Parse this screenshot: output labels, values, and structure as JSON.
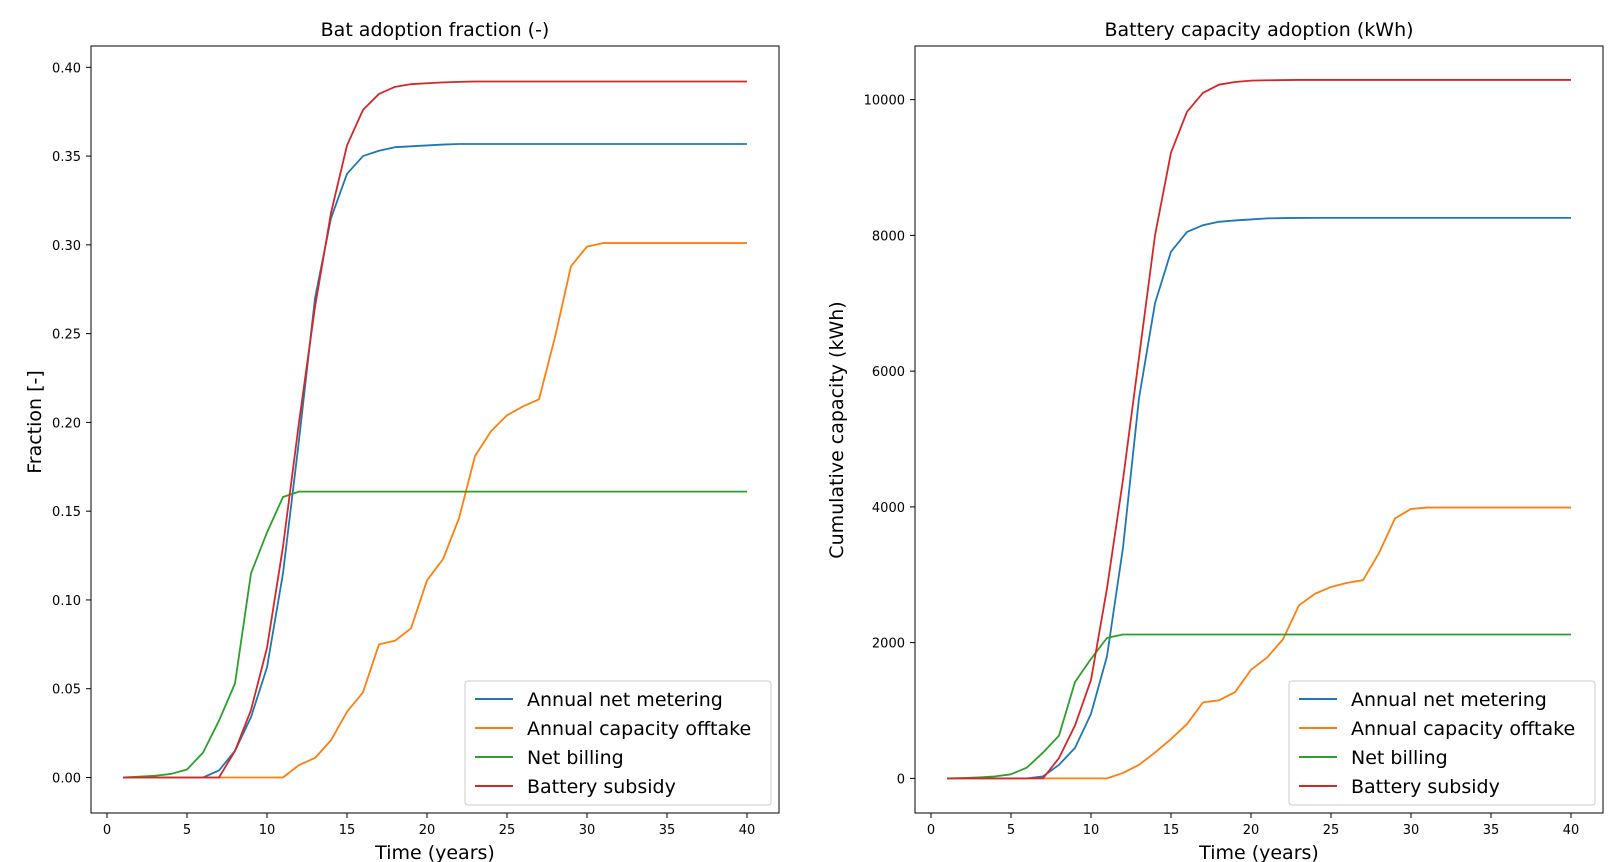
{
  "chart_data": [
    {
      "type": "line",
      "title": "Bat adoption fraction (-)",
      "xlabel": "Time (years)",
      "ylabel": "Fraction [-]",
      "xlim": [
        -1,
        42
      ],
      "ylim": [
        -0.02,
        0.412
      ],
      "xticks": [
        0,
        5,
        10,
        15,
        20,
        25,
        30,
        35,
        40
      ],
      "yticks": [
        0.0,
        0.05,
        0.1,
        0.15,
        0.2,
        0.25,
        0.3,
        0.35,
        0.4
      ],
      "ytick_labels": [
        "0.00",
        "0.05",
        "0.10",
        "0.15",
        "0.20",
        "0.25",
        "0.30",
        "0.35",
        "0.40"
      ],
      "grid": false,
      "legend_position": "lower-right",
      "x": [
        1,
        2,
        3,
        4,
        5,
        6,
        7,
        8,
        9,
        10,
        11,
        12,
        13,
        14,
        15,
        16,
        17,
        18,
        19,
        20,
        21,
        22,
        23,
        24,
        25,
        26,
        27,
        28,
        29,
        30,
        31,
        32,
        33,
        34,
        35,
        36,
        37,
        38,
        39,
        40
      ],
      "series": [
        {
          "name": "Annual net metering",
          "color": "#1f77b4",
          "values": [
            0,
            0,
            0,
            0,
            0,
            0,
            0.004,
            0.015,
            0.034,
            0.062,
            0.115,
            0.19,
            0.27,
            0.315,
            0.34,
            0.35,
            0.353,
            0.355,
            0.3555,
            0.356,
            0.3565,
            0.3568,
            0.3568,
            0.3568,
            0.3568,
            0.3568,
            0.3568,
            0.3568,
            0.3568,
            0.3568,
            0.3568,
            0.3568,
            0.3568,
            0.3568,
            0.3568,
            0.3568,
            0.3568,
            0.3568,
            0.3568,
            0.3568
          ]
        },
        {
          "name": "Annual capacity offtake",
          "color": "#ff7f0e",
          "values": [
            0,
            0,
            0,
            0,
            0,
            0,
            0,
            0,
            0,
            0,
            0,
            0.007,
            0.011,
            0.021,
            0.037,
            0.048,
            0.075,
            0.077,
            0.084,
            0.111,
            0.123,
            0.146,
            0.181,
            0.195,
            0.204,
            0.209,
            0.213,
            0.248,
            0.288,
            0.299,
            0.301,
            0.301,
            0.301,
            0.301,
            0.301,
            0.301,
            0.301,
            0.301,
            0.301,
            0.301
          ]
        },
        {
          "name": "Net billing",
          "color": "#2ca02c",
          "values": [
            0,
            0.0005,
            0.001,
            0.002,
            0.0045,
            0.014,
            0.032,
            0.053,
            0.115,
            0.138,
            0.158,
            0.161,
            0.161,
            0.161,
            0.161,
            0.161,
            0.161,
            0.161,
            0.161,
            0.161,
            0.161,
            0.161,
            0.161,
            0.161,
            0.161,
            0.161,
            0.161,
            0.161,
            0.161,
            0.161,
            0.161,
            0.161,
            0.161,
            0.161,
            0.161,
            0.161,
            0.161,
            0.161,
            0.161,
            0.161
          ]
        },
        {
          "name": "Battery subsidy",
          "color": "#d62728",
          "values": [
            0,
            0,
            0,
            0,
            0,
            0,
            0,
            0.015,
            0.038,
            0.073,
            0.13,
            0.2,
            0.265,
            0.318,
            0.356,
            0.376,
            0.385,
            0.389,
            0.3905,
            0.391,
            0.3915,
            0.3918,
            0.392,
            0.392,
            0.392,
            0.392,
            0.392,
            0.392,
            0.392,
            0.392,
            0.392,
            0.392,
            0.392,
            0.392,
            0.392,
            0.392,
            0.392,
            0.392,
            0.392,
            0.392
          ]
        }
      ]
    },
    {
      "type": "line",
      "title": "Battery capacity adoption (kWh)",
      "xlabel": "Time (years)",
      "ylabel": "Cumulative capacity (kWh)",
      "xlim": [
        -1,
        42
      ],
      "ylim": [
        -510,
        10790
      ],
      "xticks": [
        0,
        5,
        10,
        15,
        20,
        25,
        30,
        35,
        40
      ],
      "yticks": [
        0,
        2000,
        4000,
        6000,
        8000,
        10000
      ],
      "ytick_labels": [
        "0",
        "2000",
        "4000",
        "6000",
        "8000",
        "10000"
      ],
      "grid": false,
      "legend_position": "lower-right",
      "x": [
        1,
        2,
        3,
        4,
        5,
        6,
        7,
        8,
        9,
        10,
        11,
        12,
        13,
        14,
        15,
        16,
        17,
        18,
        19,
        20,
        21,
        22,
        23,
        24,
        25,
        26,
        27,
        28,
        29,
        30,
        31,
        32,
        33,
        34,
        35,
        36,
        37,
        38,
        39,
        40
      ],
      "series": [
        {
          "name": "Annual net metering",
          "color": "#1f77b4",
          "values": [
            0,
            0,
            0,
            0,
            0,
            0,
            30,
            200,
            450,
            950,
            1800,
            3400,
            5600,
            7000,
            7760,
            8050,
            8150,
            8200,
            8220,
            8235,
            8250,
            8255,
            8257,
            8258,
            8258,
            8258,
            8258,
            8258,
            8258,
            8258,
            8258,
            8258,
            8258,
            8258,
            8258,
            8258,
            8258,
            8258,
            8258,
            8258
          ]
        },
        {
          "name": "Annual capacity offtake",
          "color": "#ff7f0e",
          "values": [
            0,
            0,
            0,
            0,
            0,
            0,
            0,
            0,
            0,
            0,
            0,
            80,
            200,
            380,
            580,
            800,
            1120,
            1150,
            1270,
            1600,
            1780,
            2050,
            2550,
            2720,
            2820,
            2880,
            2920,
            3320,
            3830,
            3970,
            3990,
            3990,
            3990,
            3990,
            3990,
            3990,
            3990,
            3990,
            3990,
            3990
          ]
        },
        {
          "name": "Net billing",
          "color": "#2ca02c",
          "values": [
            0,
            5,
            15,
            30,
            60,
            160,
            380,
            630,
            1420,
            1760,
            2070,
            2120,
            2120,
            2120,
            2120,
            2120,
            2120,
            2120,
            2120,
            2120,
            2120,
            2120,
            2120,
            2120,
            2120,
            2120,
            2120,
            2120,
            2120,
            2120,
            2120,
            2120,
            2120,
            2120,
            2120,
            2120,
            2120,
            2120,
            2120,
            2120
          ]
        },
        {
          "name": "Battery subsidy",
          "color": "#d62728",
          "values": [
            0,
            0,
            0,
            0,
            0,
            0,
            0,
            300,
            780,
            1450,
            2800,
            4400,
            6200,
            8000,
            9220,
            9820,
            10100,
            10220,
            10260,
            10280,
            10285,
            10288,
            10290,
            10290,
            10290,
            10290,
            10290,
            10290,
            10290,
            10290,
            10290,
            10290,
            10290,
            10290,
            10290,
            10290,
            10290,
            10290,
            10290,
            10290
          ]
        }
      ]
    }
  ]
}
